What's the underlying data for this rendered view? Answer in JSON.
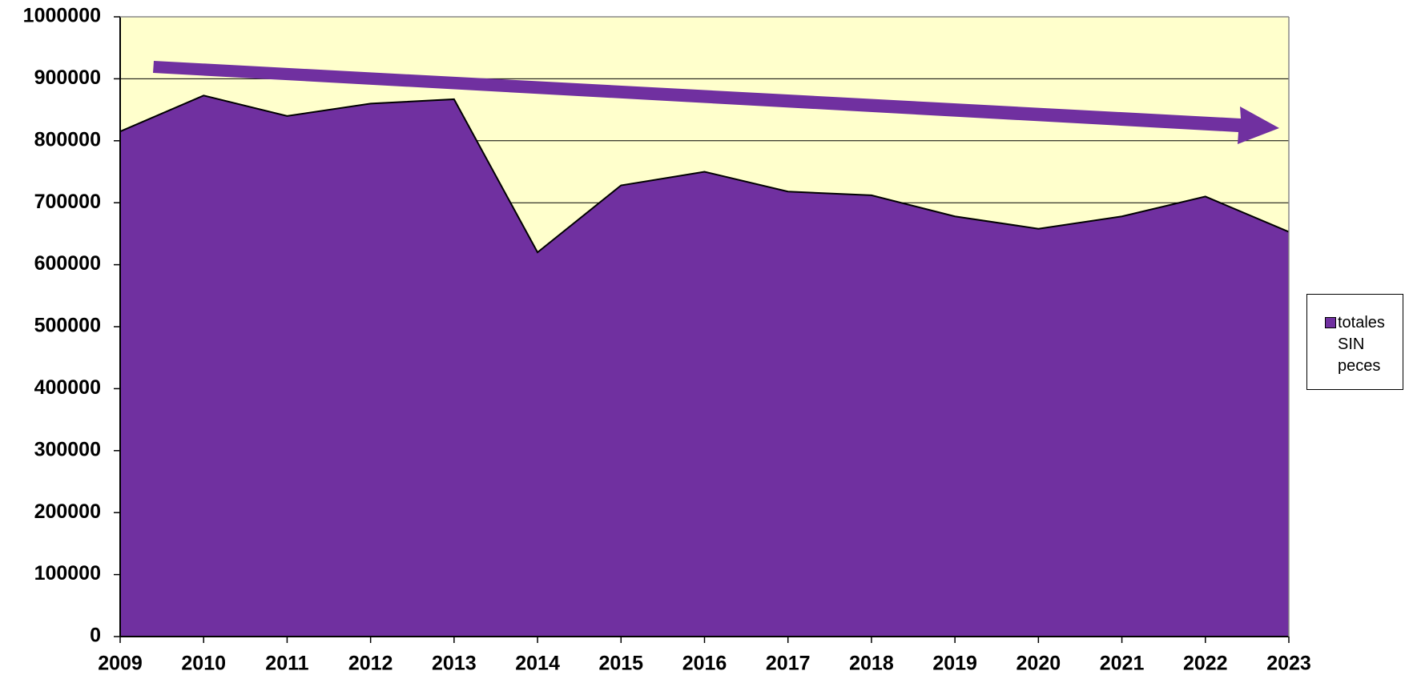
{
  "chart_data": {
    "type": "area",
    "categories": [
      "2009",
      "2010",
      "2011",
      "2012",
      "2013",
      "2014",
      "2015",
      "2016",
      "2017",
      "2018",
      "2019",
      "2020",
      "2021",
      "2022",
      "2023"
    ],
    "series": [
      {
        "name": "totales SIN peces",
        "color": "#7030a0",
        "values": [
          815000,
          873000,
          840000,
          860000,
          867000,
          620000,
          728000,
          750000,
          718000,
          712000,
          678000,
          658000,
          678000,
          710000,
          653000
        ]
      }
    ],
    "ylim": [
      0,
      1000000
    ],
    "yticks": [
      0,
      100000,
      200000,
      300000,
      400000,
      500000,
      600000,
      700000,
      800000,
      900000,
      1000000
    ],
    "grid": true,
    "legend": "right"
  }
}
